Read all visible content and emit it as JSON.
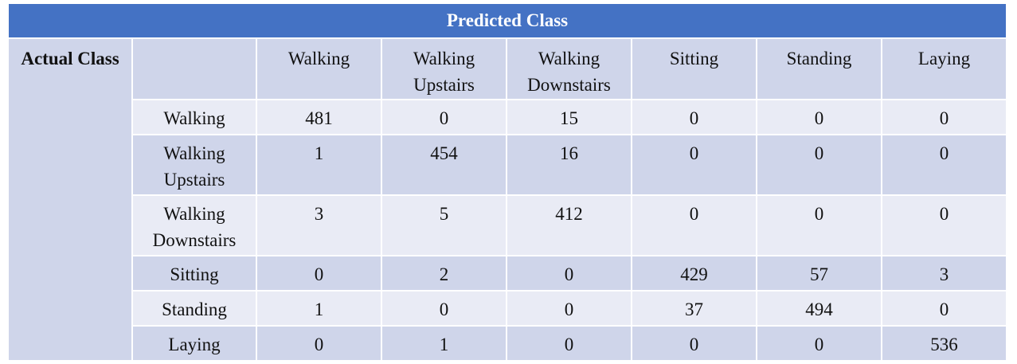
{
  "chart_data": {
    "type": "table",
    "title": "Predicted Class",
    "row_axis_label": "Actual Class",
    "columns": [
      "Walking",
      "Walking Upstairs",
      "Walking Downstairs",
      "Sitting",
      "Standing",
      "Laying"
    ],
    "rows": [
      {
        "label": "Walking",
        "values": [
          481,
          0,
          15,
          0,
          0,
          0
        ]
      },
      {
        "label": "Walking Upstairs",
        "values": [
          1,
          454,
          16,
          0,
          0,
          0
        ]
      },
      {
        "label": "Walking Downstairs",
        "values": [
          3,
          5,
          412,
          0,
          0,
          0
        ]
      },
      {
        "label": "Sitting",
        "values": [
          0,
          2,
          0,
          429,
          57,
          3
        ]
      },
      {
        "label": "Standing",
        "values": [
          1,
          0,
          0,
          37,
          494,
          0
        ]
      },
      {
        "label": "Laying",
        "values": [
          0,
          1,
          0,
          0,
          0,
          536
        ]
      }
    ]
  },
  "colors": {
    "header_bg": "#4472c4",
    "header_text": "#ffffff",
    "band_dark": "#cfd5ea",
    "band_light": "#e9ebf5"
  }
}
